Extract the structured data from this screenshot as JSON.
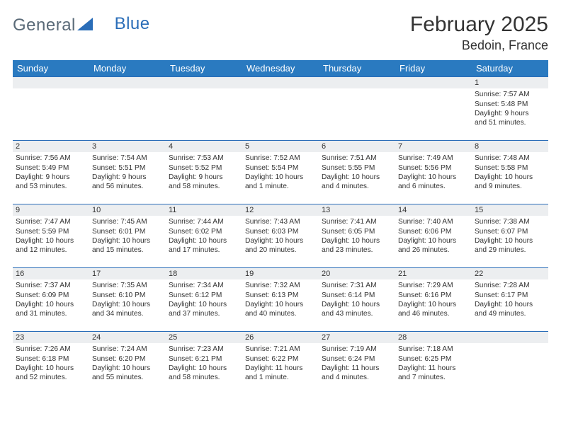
{
  "brand": {
    "part1": "General",
    "part2": "Blue"
  },
  "title": "February 2025",
  "location": "Bedoin, France",
  "colors": {
    "header_bg": "#2a7ac0",
    "header_text": "#ffffff",
    "row_border": "#2a6db8",
    "daynum_bg": "#eceef0",
    "page_bg": "#ffffff",
    "text": "#333333",
    "brand_gray": "#5a6a78",
    "brand_blue": "#2a6db8"
  },
  "weekdays": [
    "Sunday",
    "Monday",
    "Tuesday",
    "Wednesday",
    "Thursday",
    "Friday",
    "Saturday"
  ],
  "weeks": [
    [
      {
        "day": "",
        "sunrise": "",
        "sunset": "",
        "daylight1": "",
        "daylight2": ""
      },
      {
        "day": "",
        "sunrise": "",
        "sunset": "",
        "daylight1": "",
        "daylight2": ""
      },
      {
        "day": "",
        "sunrise": "",
        "sunset": "",
        "daylight1": "",
        "daylight2": ""
      },
      {
        "day": "",
        "sunrise": "",
        "sunset": "",
        "daylight1": "",
        "daylight2": ""
      },
      {
        "day": "",
        "sunrise": "",
        "sunset": "",
        "daylight1": "",
        "daylight2": ""
      },
      {
        "day": "",
        "sunrise": "",
        "sunset": "",
        "daylight1": "",
        "daylight2": ""
      },
      {
        "day": "1",
        "sunrise": "Sunrise: 7:57 AM",
        "sunset": "Sunset: 5:48 PM",
        "daylight1": "Daylight: 9 hours",
        "daylight2": "and 51 minutes."
      }
    ],
    [
      {
        "day": "2",
        "sunrise": "Sunrise: 7:56 AM",
        "sunset": "Sunset: 5:49 PM",
        "daylight1": "Daylight: 9 hours",
        "daylight2": "and 53 minutes."
      },
      {
        "day": "3",
        "sunrise": "Sunrise: 7:54 AM",
        "sunset": "Sunset: 5:51 PM",
        "daylight1": "Daylight: 9 hours",
        "daylight2": "and 56 minutes."
      },
      {
        "day": "4",
        "sunrise": "Sunrise: 7:53 AM",
        "sunset": "Sunset: 5:52 PM",
        "daylight1": "Daylight: 9 hours",
        "daylight2": "and 58 minutes."
      },
      {
        "day": "5",
        "sunrise": "Sunrise: 7:52 AM",
        "sunset": "Sunset: 5:54 PM",
        "daylight1": "Daylight: 10 hours",
        "daylight2": "and 1 minute."
      },
      {
        "day": "6",
        "sunrise": "Sunrise: 7:51 AM",
        "sunset": "Sunset: 5:55 PM",
        "daylight1": "Daylight: 10 hours",
        "daylight2": "and 4 minutes."
      },
      {
        "day": "7",
        "sunrise": "Sunrise: 7:49 AM",
        "sunset": "Sunset: 5:56 PM",
        "daylight1": "Daylight: 10 hours",
        "daylight2": "and 6 minutes."
      },
      {
        "day": "8",
        "sunrise": "Sunrise: 7:48 AM",
        "sunset": "Sunset: 5:58 PM",
        "daylight1": "Daylight: 10 hours",
        "daylight2": "and 9 minutes."
      }
    ],
    [
      {
        "day": "9",
        "sunrise": "Sunrise: 7:47 AM",
        "sunset": "Sunset: 5:59 PM",
        "daylight1": "Daylight: 10 hours",
        "daylight2": "and 12 minutes."
      },
      {
        "day": "10",
        "sunrise": "Sunrise: 7:45 AM",
        "sunset": "Sunset: 6:01 PM",
        "daylight1": "Daylight: 10 hours",
        "daylight2": "and 15 minutes."
      },
      {
        "day": "11",
        "sunrise": "Sunrise: 7:44 AM",
        "sunset": "Sunset: 6:02 PM",
        "daylight1": "Daylight: 10 hours",
        "daylight2": "and 17 minutes."
      },
      {
        "day": "12",
        "sunrise": "Sunrise: 7:43 AM",
        "sunset": "Sunset: 6:03 PM",
        "daylight1": "Daylight: 10 hours",
        "daylight2": "and 20 minutes."
      },
      {
        "day": "13",
        "sunrise": "Sunrise: 7:41 AM",
        "sunset": "Sunset: 6:05 PM",
        "daylight1": "Daylight: 10 hours",
        "daylight2": "and 23 minutes."
      },
      {
        "day": "14",
        "sunrise": "Sunrise: 7:40 AM",
        "sunset": "Sunset: 6:06 PM",
        "daylight1": "Daylight: 10 hours",
        "daylight2": "and 26 minutes."
      },
      {
        "day": "15",
        "sunrise": "Sunrise: 7:38 AM",
        "sunset": "Sunset: 6:07 PM",
        "daylight1": "Daylight: 10 hours",
        "daylight2": "and 29 minutes."
      }
    ],
    [
      {
        "day": "16",
        "sunrise": "Sunrise: 7:37 AM",
        "sunset": "Sunset: 6:09 PM",
        "daylight1": "Daylight: 10 hours",
        "daylight2": "and 31 minutes."
      },
      {
        "day": "17",
        "sunrise": "Sunrise: 7:35 AM",
        "sunset": "Sunset: 6:10 PM",
        "daylight1": "Daylight: 10 hours",
        "daylight2": "and 34 minutes."
      },
      {
        "day": "18",
        "sunrise": "Sunrise: 7:34 AM",
        "sunset": "Sunset: 6:12 PM",
        "daylight1": "Daylight: 10 hours",
        "daylight2": "and 37 minutes."
      },
      {
        "day": "19",
        "sunrise": "Sunrise: 7:32 AM",
        "sunset": "Sunset: 6:13 PM",
        "daylight1": "Daylight: 10 hours",
        "daylight2": "and 40 minutes."
      },
      {
        "day": "20",
        "sunrise": "Sunrise: 7:31 AM",
        "sunset": "Sunset: 6:14 PM",
        "daylight1": "Daylight: 10 hours",
        "daylight2": "and 43 minutes."
      },
      {
        "day": "21",
        "sunrise": "Sunrise: 7:29 AM",
        "sunset": "Sunset: 6:16 PM",
        "daylight1": "Daylight: 10 hours",
        "daylight2": "and 46 minutes."
      },
      {
        "day": "22",
        "sunrise": "Sunrise: 7:28 AM",
        "sunset": "Sunset: 6:17 PM",
        "daylight1": "Daylight: 10 hours",
        "daylight2": "and 49 minutes."
      }
    ],
    [
      {
        "day": "23",
        "sunrise": "Sunrise: 7:26 AM",
        "sunset": "Sunset: 6:18 PM",
        "daylight1": "Daylight: 10 hours",
        "daylight2": "and 52 minutes."
      },
      {
        "day": "24",
        "sunrise": "Sunrise: 7:24 AM",
        "sunset": "Sunset: 6:20 PM",
        "daylight1": "Daylight: 10 hours",
        "daylight2": "and 55 minutes."
      },
      {
        "day": "25",
        "sunrise": "Sunrise: 7:23 AM",
        "sunset": "Sunset: 6:21 PM",
        "daylight1": "Daylight: 10 hours",
        "daylight2": "and 58 minutes."
      },
      {
        "day": "26",
        "sunrise": "Sunrise: 7:21 AM",
        "sunset": "Sunset: 6:22 PM",
        "daylight1": "Daylight: 11 hours",
        "daylight2": "and 1 minute."
      },
      {
        "day": "27",
        "sunrise": "Sunrise: 7:19 AM",
        "sunset": "Sunset: 6:24 PM",
        "daylight1": "Daylight: 11 hours",
        "daylight2": "and 4 minutes."
      },
      {
        "day": "28",
        "sunrise": "Sunrise: 7:18 AM",
        "sunset": "Sunset: 6:25 PM",
        "daylight1": "Daylight: 11 hours",
        "daylight2": "and 7 minutes."
      },
      {
        "day": "",
        "sunrise": "",
        "sunset": "",
        "daylight1": "",
        "daylight2": ""
      }
    ]
  ]
}
